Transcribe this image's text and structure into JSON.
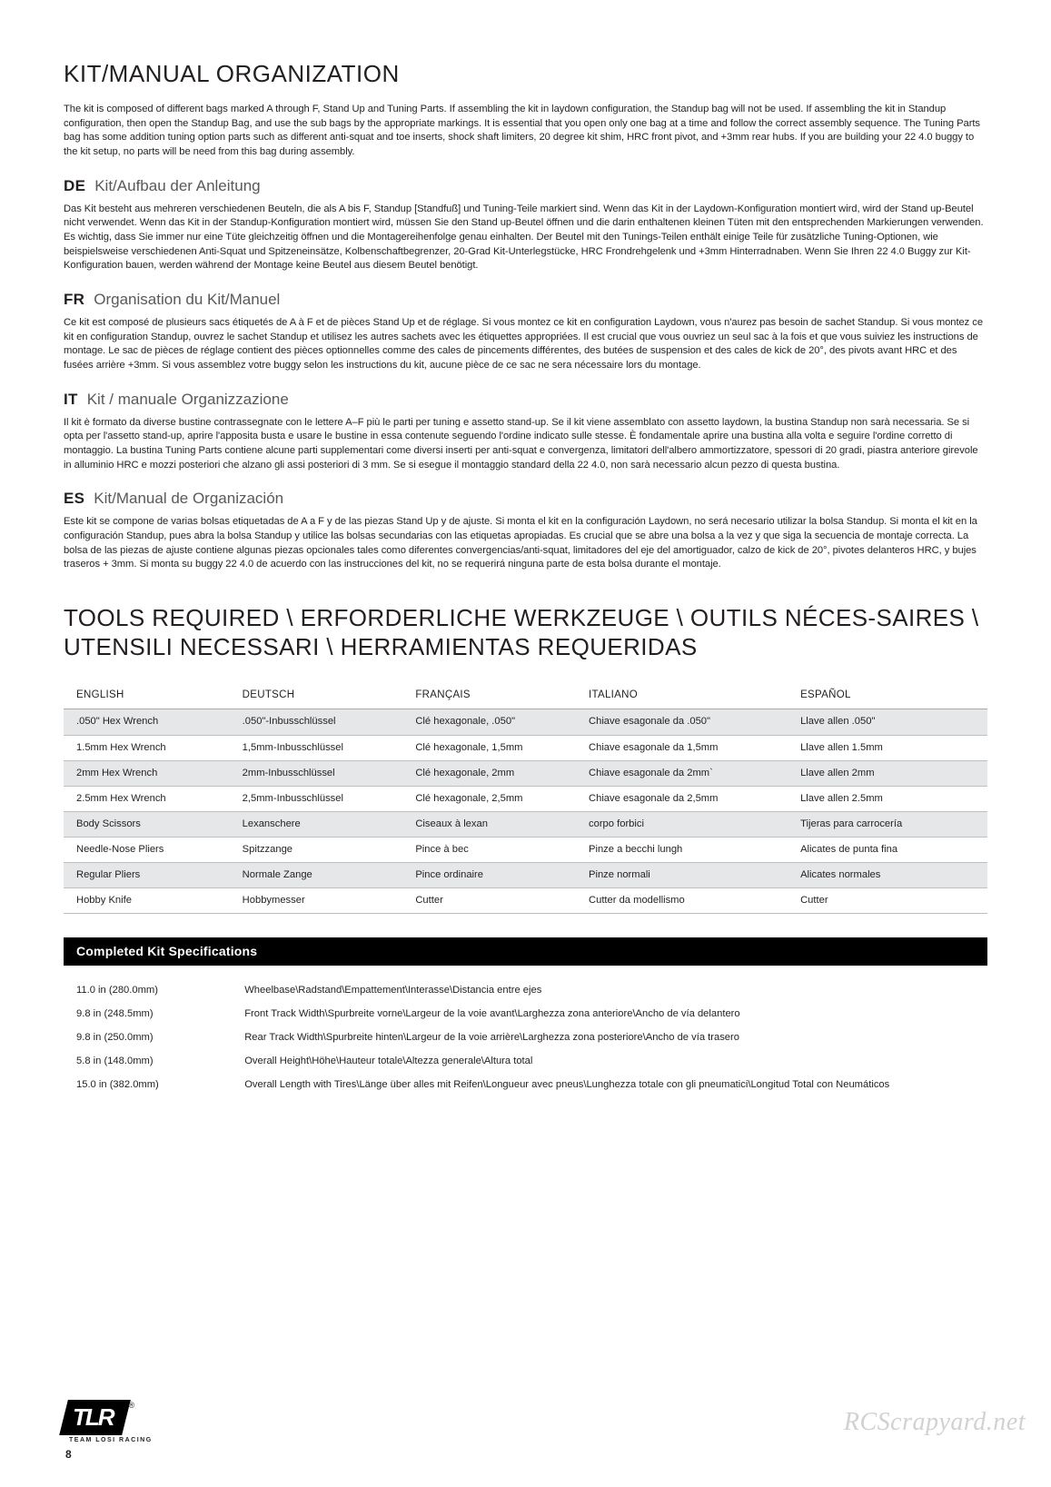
{
  "section1": {
    "title": "KIT/MANUAL ORGANIZATION",
    "intro": "The kit is composed of different bags marked A through F, Stand Up and Tuning Parts. If assembling the kit in laydown configuration, the Standup bag will not be used.  If assembling the kit in Standup configuration, then open the Standup Bag, and use the sub bags by the appropriate markings. It is essential that you open only one bag at a time and follow the correct assembly sequence. The Tuning Parts bag has some addition tuning option parts such as different anti-squat and toe inserts, shock shaft limiters, 20 degree kit shim, HRC front pivot, and +3mm rear hubs. If you are building your 22 4.0 buggy to the kit setup, no parts will be need from this bag during assembly.",
    "langs": [
      {
        "code": "DE",
        "title": "Kit/Aufbau der Anleitung",
        "body": "Das Kit besteht aus mehreren verschiedenen Beuteln, die als A bis F, Standup [Standfuß] und Tuning-Teile markiert sind. Wenn das Kit in der Laydown-Konfiguration montiert wird, wird der Stand up-Beutel nicht verwendet. Wenn das Kit in der Standup-Konfiguration montiert wird, müssen Sie den Stand up-Beutel öffnen und die darin enthaltenen kleinen Tüten mit den entsprechenden Markierungen verwenden. Es wichtig, dass Sie immer nur eine Tüte gleichzeitig öffnen und die Montagereihenfolge genau einhalten. Der Beutel mit den Tunings-Teilen enthält einige Teile für zusätzliche Tuning-Optionen, wie beispielsweise verschiedenen Anti-Squat und Spitzeneinsätze, Kolbenschaftbegrenzer, 20-Grad Kit-Unterlegstücke, HRC Frondrehgelenk und +3mm Hinterradnaben. Wenn Sie Ihren 22 4.0 Buggy zur Kit-Konfiguration bauen, werden während der Montage keine Beutel aus diesem Beutel benötigt."
      },
      {
        "code": "FR",
        "title": "Organisation du Kit/Manuel",
        "body": "Ce kit est composé de plusieurs sacs étiquetés de A à F et de pièces Stand Up et de réglage. Si vous montez ce kit en configuration Laydown, vous n'aurez pas besoin de sachet Standup. Si vous montez ce kit en configuration Standup, ouvrez le sachet Standup et utilisez les autres sachets avec les étiquettes appropriées. Il est crucial que vous ouvriez un seul sac à la fois et que vous suiviez les instructions de montage. Le sac de pièces de réglage contient des pièces optionnelles comme des cales de pincements différentes, des butées de suspension et des cales de kick de 20°, des pivots avant HRC et des fusées arrière +3mm. Si vous assemblez votre buggy selon les instructions du kit, aucune pièce de ce sac ne sera nécessaire lors du montage."
      },
      {
        "code": "IT",
        "title": "Kit / manuale Organizzazione",
        "body": "Il kit è formato da diverse bustine contrassegnate con le lettere A–F più le parti per tuning e assetto stand-up. Se il kit viene assemblato con assetto laydown, la bustina Standup non sarà necessaria. Se si opta per l'assetto stand-up, aprire l'apposita busta e usare le bustine in essa contenute seguendo l'ordine indicato sulle stesse. È fondamentale aprire una bustina alla volta e seguire l'ordine corretto di montaggio. La bustina Tuning Parts contiene alcune parti supplementari come diversi inserti per anti-squat e convergenza, limitatori dell'albero ammortizzatore, spessori di 20 gradi, piastra anteriore girevole in alluminio HRC e mozzi posteriori che alzano gli assi posteriori di 3 mm. Se si esegue il montaggio standard della 22 4.0, non sarà necessario alcun pezzo di questa bustina."
      },
      {
        "code": "ES",
        "title": "Kit/Manual de Organización",
        "body": "Este kit se compone de varias bolsas etiquetadas de A a F y de las piezas Stand Up y de ajuste. Si monta el kit en la configuración Laydown, no será necesario utilizar la bolsa Standup.  Si monta el kit en la configuración Standup, pues abra la bolsa Standup y utilice las bolsas secundarias con las etiquetas apropiadas. Es crucial que se abre una bolsa a la vez y que siga la secuencia de montaje correcta. La bolsa de las piezas de ajuste contiene algunas piezas opcionales tales como diferentes convergencias/anti-squat, limitadores del eje del amortiguador, calzo de kick de 20°, pivotes delanteros HRC, y bujes traseros + 3mm. Si monta su buggy 22 4.0 de acuerdo con las instrucciones del kit, no se requerirá ninguna parte de esta bolsa durante el montaje."
      }
    ]
  },
  "tools": {
    "title": "TOOLS REQUIRED \\ ERFORDERLICHE WERKZEUGE \\ OUTILS NÉCES-SAIRES \\ UTENSILI NECESSARI \\ HERRAMIENTAS REQUERIDAS",
    "columns": [
      "ENGLISH",
      "DEUTSCH",
      "FRANÇAIS",
      "ITALIANO",
      "ESPAÑOL"
    ],
    "rows": [
      [
        ".050\" Hex Wrench",
        ".050\"-Inbusschlüssel",
        "Clé hexagonale, .050\"",
        "Chiave esagonale da .050\"",
        "Llave allen .050\""
      ],
      [
        "1.5mm Hex Wrench",
        "1,5mm-Inbusschlüssel",
        "Clé hexagonale, 1,5mm",
        "Chiave esagonale da 1,5mm",
        "Llave allen 1.5mm"
      ],
      [
        "2mm Hex Wrench",
        "2mm-Inbusschlüssel",
        "Clé hexagonale, 2mm",
        "Chiave esagonale da 2mm`",
        "Llave allen 2mm"
      ],
      [
        "2.5mm Hex Wrench",
        "2,5mm-Inbusschlüssel",
        "Clé hexagonale, 2,5mm",
        "Chiave esagonale da 2,5mm",
        "Llave allen 2.5mm"
      ],
      [
        "Body Scissors",
        "Lexanschere",
        "Ciseaux à lexan",
        "corpo forbici",
        "Tijeras para carrocería"
      ],
      [
        "Needle-Nose Pliers",
        "Spitzzange",
        "Pince à bec",
        "Pinze a becchi lungh",
        "Alicates de punta fina"
      ],
      [
        "Regular Pliers",
        "Normale Zange",
        "Pince ordinaire",
        "Pinze normali",
        "Alicates normales"
      ],
      [
        "Hobby Knife",
        "Hobbymesser",
        "Cutter",
        "Cutter da modellismo",
        "Cutter"
      ]
    ]
  },
  "specs": {
    "bar_title": "Completed Kit Specifications",
    "rows": [
      [
        "11.0 in (280.0mm)",
        "Wheelbase\\Radstand\\Empattement\\Interasse\\Distancia entre ejes"
      ],
      [
        "9.8 in (248.5mm)",
        "Front Track Width\\Spurbreite vorne\\Largeur de la voie avant\\Larghezza zona anteriore\\Ancho de vía delantero"
      ],
      [
        "9.8 in (250.0mm)",
        "Rear Track Width\\Spurbreite hinten\\Largeur de la voie arrière\\Larghezza zona posteriore\\Ancho de vía trasero"
      ],
      [
        "5.8 in (148.0mm)",
        "Overall Height\\Höhe\\Hauteur totale\\Altezza generale\\Altura total"
      ],
      [
        "15.0 in (382.0mm)",
        "Overall Length with Tires\\Länge über alles mit Reifen\\Longueur avec pneus\\Lunghezza totale con gli pneumatici\\Longitud Total con Neumáticos"
      ]
    ]
  },
  "footer": {
    "watermark": "RCScrapyard.net",
    "logo_text": "TLR",
    "logo_sub": "TEAM LOSI RACING",
    "page_number": "8",
    "reg": "®"
  }
}
